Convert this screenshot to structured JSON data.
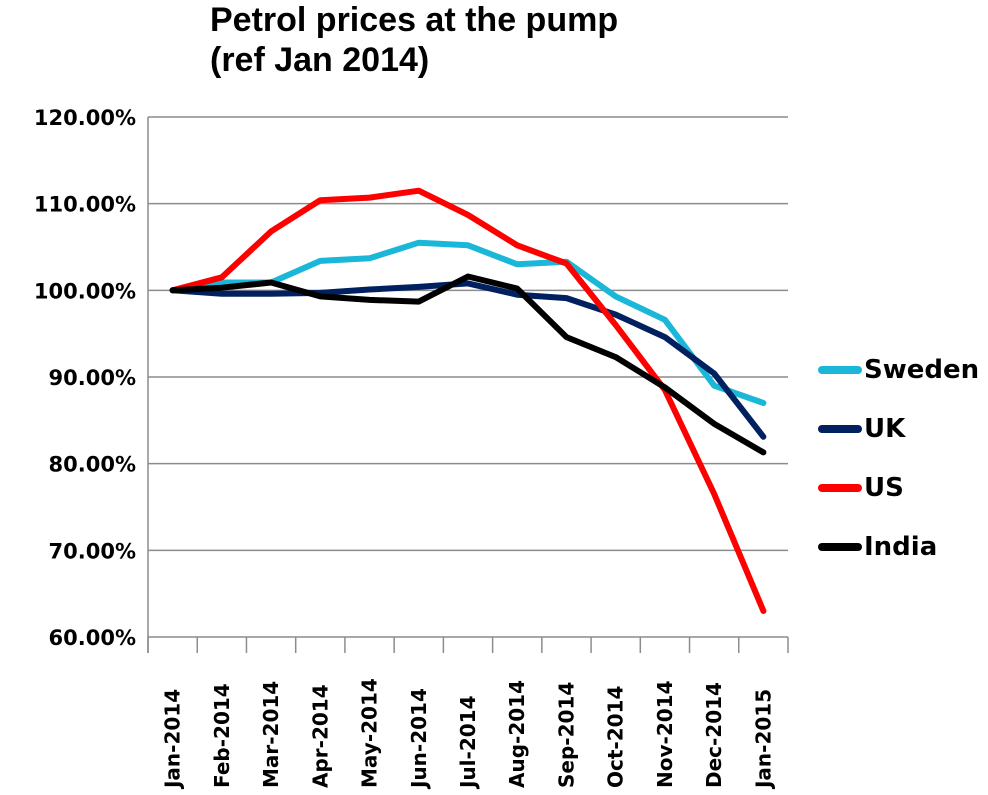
{
  "chart_data": {
    "type": "line",
    "title": "Petrol prices at the pump",
    "subtitle": "(ref Jan 2014)",
    "title_lines": [
      "Petrol prices at the pump",
      "(ref Jan 2014)"
    ],
    "xlabel": "",
    "ylabel": "",
    "ylim": [
      60,
      120
    ],
    "yticks": [
      "120.00%",
      "110.00%",
      "100.00%",
      "90.00%",
      "80.00%",
      "70.00%",
      "60.00%"
    ],
    "ytick_values": [
      120,
      110,
      100,
      90,
      80,
      70,
      60
    ],
    "grid": "horizontal",
    "legend_position": "right",
    "categories": [
      "Jan-2014",
      "Feb-2014",
      "Mar-2014",
      "Apr-2014",
      "May-2014",
      "Jun-2014",
      "Jul-2014",
      "Aug-2014",
      "Sep-2014",
      "Oct-2014",
      "Nov-2014",
      "Dec-2014",
      "Jan-2015"
    ],
    "series": [
      {
        "name": "Sweden",
        "color": "#1AB7D9",
        "values": [
          100.0,
          100.9,
          100.9,
          103.4,
          103.7,
          105.5,
          105.2,
          103.0,
          103.3,
          99.3,
          96.6,
          89.0,
          87.0
        ]
      },
      {
        "name": "UK",
        "color": "#002060",
        "values": [
          100.0,
          99.6,
          99.6,
          99.7,
          100.1,
          100.4,
          100.8,
          99.5,
          99.1,
          97.2,
          94.6,
          90.4,
          83.1
        ]
      },
      {
        "name": "US",
        "color": "#FF0000",
        "values": [
          100.0,
          101.5,
          106.8,
          110.4,
          110.7,
          111.5,
          108.7,
          105.2,
          103.1,
          96.0,
          88.5,
          76.5,
          63.0
        ]
      },
      {
        "name": "India",
        "color": "#000000",
        "values": [
          100.0,
          100.3,
          100.9,
          99.3,
          98.9,
          98.7,
          101.6,
          100.2,
          94.6,
          92.3,
          88.8,
          84.6,
          81.3
        ]
      }
    ]
  }
}
